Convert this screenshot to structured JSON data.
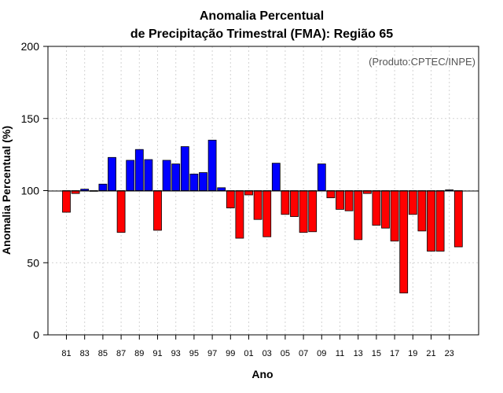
{
  "chart_data": {
    "type": "bar",
    "title_line1": "Anomalia Percentual",
    "title_line2": "de Precipitação Trimestral (FMA): Região 65",
    "xlabel": "Ano",
    "ylabel": "Anomalia Percentual (%)",
    "credit": "(Produto:CPTEC/INPE)",
    "baseline": 100,
    "ylim": [
      0,
      200
    ],
    "yticks": [
      0,
      50,
      100,
      150,
      200
    ],
    "colors": {
      "above": "#0000ff",
      "below": "#ff0000",
      "edge": "#000000",
      "grid": "#d3d3d3"
    },
    "categories": [
      "81",
      "82",
      "83",
      "84",
      "85",
      "86",
      "87",
      "88",
      "89",
      "90",
      "91",
      "92",
      "93",
      "94",
      "95",
      "96",
      "97",
      "98",
      "99",
      "00",
      "01",
      "02",
      "03",
      "04",
      "05",
      "06",
      "07",
      "08",
      "09",
      "10",
      "11",
      "12",
      "13",
      "14",
      "15",
      "16",
      "17",
      "18",
      "19",
      "20",
      "21",
      "22",
      "23",
      "24"
    ],
    "xtick_labels": [
      "81",
      "83",
      "85",
      "87",
      "89",
      "91",
      "93",
      "95",
      "97",
      "99",
      "01",
      "03",
      "05",
      "07",
      "09",
      "11",
      "13",
      "15",
      "17",
      "19",
      "21",
      "23"
    ],
    "values": [
      85,
      98,
      101,
      99.5,
      104.5,
      123,
      71,
      121,
      128.5,
      121.5,
      72.5,
      121,
      118.5,
      130.5,
      111.5,
      112.5,
      135,
      102,
      88,
      67,
      97,
      80,
      68,
      119,
      83.5,
      82,
      71,
      71.5,
      118.5,
      95,
      87,
      86,
      66,
      98,
      76,
      74,
      65,
      29,
      83.5,
      72,
      58,
      58,
      100.5,
      61
    ]
  }
}
